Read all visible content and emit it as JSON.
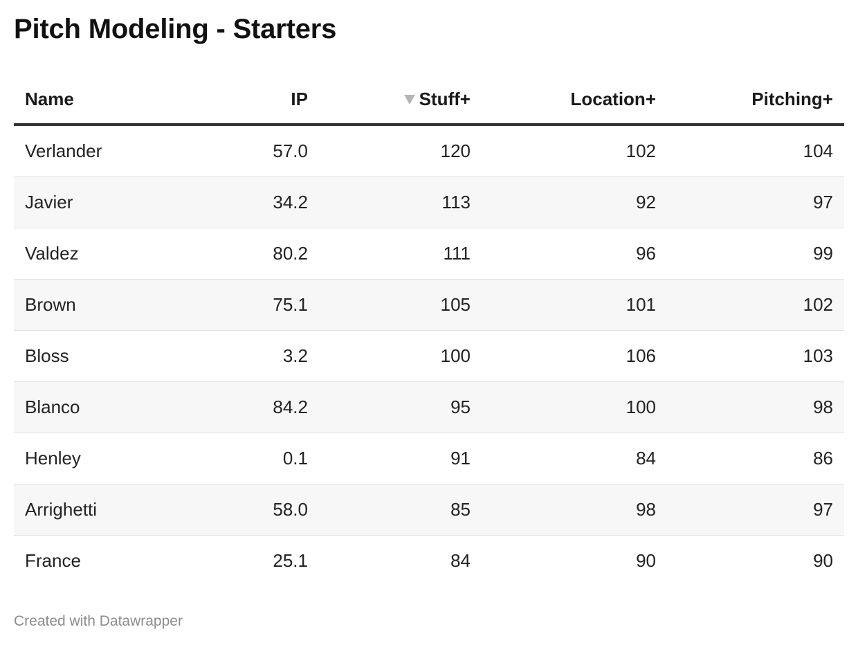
{
  "chart_data": {
    "type": "table",
    "title": "Pitch Modeling - Starters",
    "columns": [
      "Name",
      "IP",
      "Stuff+",
      "Location+",
      "Pitching+"
    ],
    "sorted_by": "Stuff+",
    "sort_direction": "descending",
    "rows": [
      [
        "Verlander",
        "57.0",
        "120",
        "102",
        "104"
      ],
      [
        "Javier",
        "34.2",
        "113",
        "92",
        "97"
      ],
      [
        "Valdez",
        "80.2",
        "111",
        "96",
        "99"
      ],
      [
        "Brown",
        "75.1",
        "105",
        "101",
        "102"
      ],
      [
        "Bloss",
        "3.2",
        "100",
        "106",
        "103"
      ],
      [
        "Blanco",
        "84.2",
        "95",
        "100",
        "98"
      ],
      [
        "Henley",
        "0.1",
        "91",
        "84",
        "86"
      ],
      [
        "Arrighetti",
        "58.0",
        "85",
        "98",
        "97"
      ],
      [
        "France",
        "25.1",
        "84",
        "90",
        "90"
      ]
    ],
    "footer": "Created with Datawrapper"
  },
  "colors": {
    "header_rule": "#333333",
    "row_stripe": "#f7f7f7",
    "row_divider": "#e2e2e2",
    "sort_arrow": "#b5b5b5",
    "footer_text": "#8c8c8c"
  },
  "icons": {
    "sort": "sort-descending-icon"
  }
}
